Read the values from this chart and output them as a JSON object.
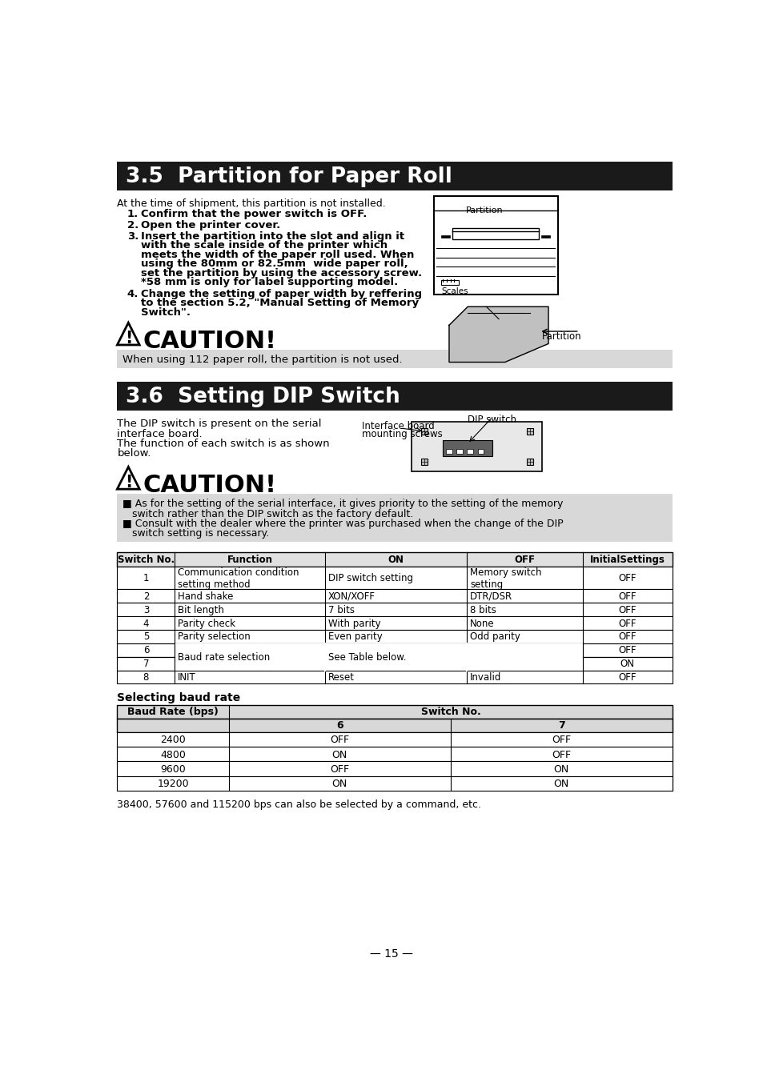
{
  "title_35": "3.5  Partition for Paper Roll",
  "title_36": "3.6  Setting DIP Switch",
  "bg_color": "#ffffff",
  "header_bg": "#1a1a1a",
  "caution1_text": "When using 112 paper roll, the partition is not used.",
  "section36_intro": "The DIP switch is present on the serial\ninterface board.\nThe function of each switch is as shown\nbelow.",
  "caution2_line1": "■ As for the setting of the serial interface, it gives priority to the setting of the memory",
  "caution2_line1b": "   switch rather than the DIP switch as the factory default.",
  "caution2_line2": "■ Consult with the dealer where the printer was purchased when the change of the DIP",
  "caution2_line2b": "   switch setting is necessary.",
  "dip_table_headers": [
    "Switch No.",
    "Function",
    "ON",
    "OFF",
    "InitialSettings"
  ],
  "dip_table_rows": [
    [
      "1",
      "Communication condition\nsetting method",
      "DIP switch setting",
      "Memory switch\nsetting",
      "OFF"
    ],
    [
      "2",
      "Hand shake",
      "XON/XOFF",
      "DTR/DSR",
      "OFF"
    ],
    [
      "3",
      "Bit length",
      "7 bits",
      "8 bits",
      "OFF"
    ],
    [
      "4",
      "Parity check",
      "With parity",
      "None",
      "OFF"
    ],
    [
      "5",
      "Parity selection",
      "Even parity",
      "Odd parity",
      "OFF"
    ],
    [
      "6",
      "Baud rate selection",
      "See Table below.",
      "",
      "OFF"
    ],
    [
      "7",
      "",
      "",
      "",
      "ON"
    ],
    [
      "8",
      "INIT",
      "Reset",
      "Invalid",
      "OFF"
    ]
  ],
  "baud_label": "Selecting baud rate",
  "baud_table_rows": [
    [
      "2400",
      "OFF",
      "OFF"
    ],
    [
      "4800",
      "ON",
      "OFF"
    ],
    [
      "9600",
      "OFF",
      "ON"
    ],
    [
      "19200",
      "ON",
      "ON"
    ]
  ],
  "footer_note": "38400, 57600 and 115200 bps can also be selected by a command, etc.",
  "page_number": "— 15 —"
}
